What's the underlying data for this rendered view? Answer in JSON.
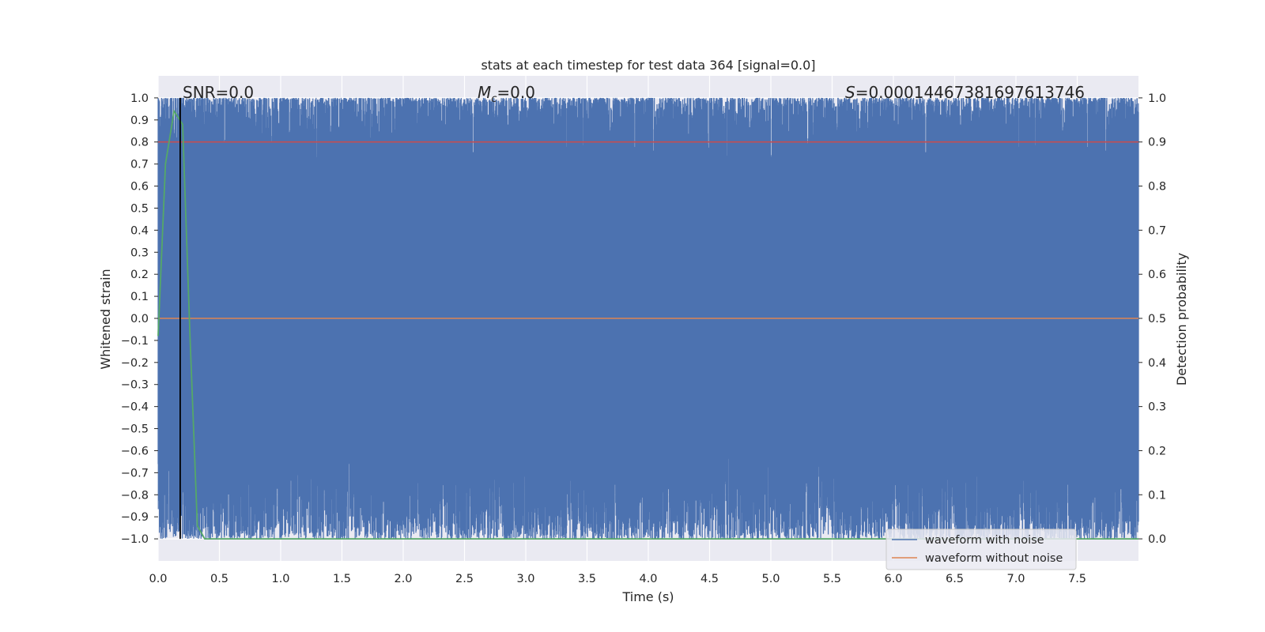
{
  "chart_data": {
    "type": "line",
    "title": "stats at each timestep for test data 364 [signal=0.0]",
    "xlabel": "Time (s)",
    "ylabel": "Whitened strain",
    "ylabel_right": "Detection probability",
    "xlim": [
      0,
      8
    ],
    "ylim": [
      -1.1,
      1.1
    ],
    "ylim_right": [
      -0.05,
      1.05
    ],
    "x_ticks": [
      "0.0",
      "0.5",
      "1.0",
      "1.5",
      "2.0",
      "2.5",
      "3.0",
      "3.5",
      "4.0",
      "4.5",
      "5.0",
      "5.5",
      "6.0",
      "6.5",
      "7.0",
      "7.5"
    ],
    "y_ticks": [
      "1.0",
      "0.9",
      "0.8",
      "0.7",
      "0.6",
      "0.5",
      "0.4",
      "0.3",
      "0.2",
      "0.1",
      "0.0",
      "−0.1",
      "−0.2",
      "−0.3",
      "−0.4",
      "−0.5",
      "−0.6",
      "−0.7",
      "−0.8",
      "−0.9",
      "−1.0"
    ],
    "y_ticks_right": [
      "1.0",
      "0.9",
      "0.8",
      "0.7",
      "0.6",
      "0.5",
      "0.4",
      "0.3",
      "0.2",
      "0.1",
      "0.0"
    ],
    "grid": true,
    "legend_position": "lower-right",
    "annotations": {
      "snr": "SNR=0.0",
      "mc_symbol": "M",
      "mc_sub": "c",
      "mc_value": "=0.0",
      "s_symbol": "S",
      "s_value": "=0.00014467381697613746"
    },
    "series": [
      {
        "name": "waveform with noise",
        "color": "#4c72b0",
        "description": "whitened noisy strain oscillating between -1.0 and 1.0 across full 0–8 s range"
      },
      {
        "name": "waveform without noise",
        "color": "#dd8452",
        "values_note": "flat at 0.0",
        "x": [
          0,
          8
        ],
        "y": [
          0.0,
          0.0
        ]
      },
      {
        "color": "#55a868",
        "axis": "right",
        "x": [
          0.0,
          0.06,
          0.13,
          0.2,
          0.26,
          0.32,
          0.38,
          8.0
        ],
        "y": [
          0.46,
          0.85,
          0.97,
          0.94,
          0.46,
          0.03,
          0.0,
          0.0
        ]
      },
      {
        "color": "#c44e52",
        "axis": "right",
        "x": [
          0,
          8
        ],
        "y": [
          0.9,
          0.9
        ]
      },
      {
        "color": "#000000",
        "type": "vline",
        "x": 0.18,
        "y_range": [
          -1.0,
          1.0
        ]
      }
    ]
  },
  "colors": {
    "plot_bg": "#eaeaf2",
    "grid": "#ffffff",
    "noise": "#4c72b0",
    "clean": "#dd8452",
    "prob": "#55a868",
    "threshold": "#c44e52",
    "marker": "#000000"
  }
}
